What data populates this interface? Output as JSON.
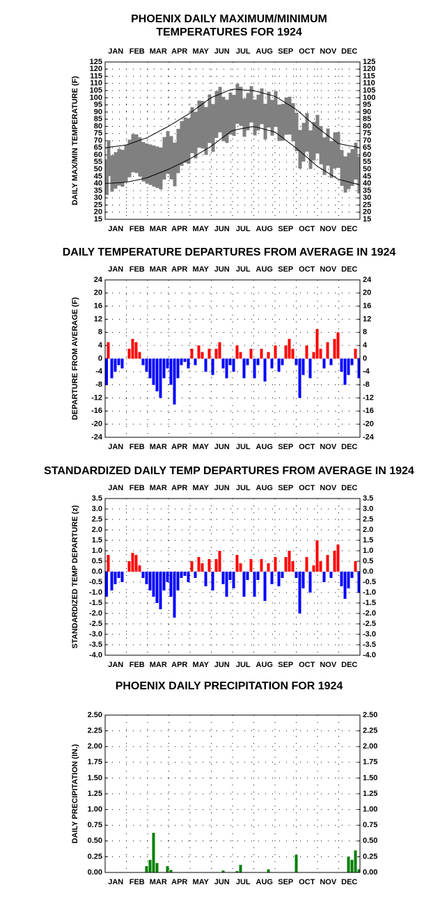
{
  "chart_data": [
    {
      "type": "range",
      "title": [
        "PHOENIX DAILY MAXIMUM/MINIMUM",
        "TEMPERATURES FOR 1924"
      ],
      "ylabel": "DAILY MAX/MIN TEMPERATURE (F)",
      "categories": [
        "JAN",
        "FEB",
        "MAR",
        "APR",
        "MAY",
        "JUN",
        "JUL",
        "AUG",
        "SEP",
        "OCT",
        "NOV",
        "DEC"
      ],
      "month_labels_top": true,
      "grid": true,
      "xlim": [
        1,
        367
      ],
      "ylim": [
        15,
        125
      ],
      "yticks": [
        15,
        20,
        25,
        30,
        35,
        40,
        45,
        50,
        55,
        60,
        65,
        70,
        75,
        80,
        85,
        90,
        95,
        100,
        105,
        110,
        115,
        120,
        125
      ],
      "x": [
        1,
        6,
        11,
        16,
        21,
        26,
        31,
        36,
        41,
        46,
        51,
        56,
        61,
        66,
        71,
        76,
        81,
        86,
        91,
        96,
        101,
        106,
        111,
        116,
        121,
        126,
        131,
        136,
        141,
        146,
        151,
        156,
        161,
        166,
        171,
        176,
        181,
        186,
        191,
        196,
        201,
        206,
        211,
        216,
        221,
        226,
        231,
        236,
        241,
        246,
        251,
        256,
        261,
        266,
        271,
        276,
        281,
        286,
        291,
        296,
        301,
        306,
        311,
        316,
        321,
        326,
        331,
        336,
        341,
        346,
        351,
        356,
        361,
        366
      ],
      "series": [
        {
          "color": "#808080",
          "values": [
            57,
            70.3,
            59.7,
            62,
            64.3,
            63.6,
            67,
            70.7,
            74.6,
            74.4,
            72.3,
            69.1,
            68,
            67.3,
            66.6,
            65.9,
            65.2,
            72.5,
            76.7,
            73.2,
            68.7,
            78.2,
            83.7,
            86.2,
            85.7,
            93.4,
            90.2,
            98,
            97.7,
            93.5,
            102.3,
            95.6,
            104.6,
            107.6,
            100.6,
            98.6,
            103.6,
            102,
            109.8,
            107.6,
            99.4,
            103.3,
            108.1,
            98.7,
            102.1,
            106.5,
            95.8,
            104.2,
            98.5,
            104.7,
            95.2,
            95.7,
            100.2,
            100.7,
            96.2,
            89.6,
            77.5,
            82.4,
            89.3,
            77.2,
            83.1,
            88,
            80.2,
            72.3,
            78.5,
            69.7,
            75.8,
            76,
            63.5,
            59,
            61.5,
            64.1,
            68.6,
            59.1
          ]
        },
        {
          "color": "#808080",
          "values": [
            32,
            45.2,
            34.3,
            36.5,
            38.6,
            37.8,
            41,
            44.4,
            47.9,
            47.4,
            44.9,
            41.5,
            40,
            39,
            37.9,
            36.9,
            35.9,
            42.8,
            46.8,
            42.9,
            38.1,
            47.3,
            52.4,
            54.6,
            53.8,
            61.2,
            57.6,
            65.1,
            64.5,
            60,
            68.4,
            62.1,
            71.9,
            75.8,
            69.6,
            68.4,
            74.3,
            73.3,
            81.8,
            80.3,
            72.7,
            77.2,
            82.7,
            73.7,
            77.1,
            81.5,
            70.8,
            79.2,
            73.5,
            79.6,
            69.8,
            70,
            74.1,
            74.3,
            69.5,
            62.6,
            50.5,
            55.4,
            62.3,
            50.2,
            56.1,
            61,
            53.5,
            46,
            52.5,
            44,
            50.5,
            51,
            38.4,
            33.7,
            36.1,
            38.4,
            42.8,
            33.1
          ]
        },
        {
          "color": "#000000",
          "values": [
            65,
            65.3,
            65.7,
            66,
            66.3,
            66.6,
            67,
            67.7,
            68.6,
            69.4,
            70.3,
            71.1,
            72,
            73.3,
            74.6,
            75.9,
            77.2,
            78.5,
            79.7,
            81.2,
            82.7,
            84.2,
            85.7,
            87.2,
            88.7,
            90.4,
            92.2,
            94,
            95.7,
            97.5,
            99.3,
            100.6,
            101.6,
            102.6,
            103.6,
            104.6,
            105.6,
            106,
            105.8,
            105.6,
            105.4,
            105.3,
            105.1,
            104.7,
            104.1,
            103.5,
            102.8,
            102.2,
            101.5,
            100.7,
            99.2,
            97.7,
            96.2,
            94.7,
            93.2,
            91.6,
            89.5,
            87.4,
            85.3,
            83.2,
            81.1,
            79,
            77.2,
            75.3,
            73.5,
            71.7,
            69.8,
            68,
            67.5,
            67,
            66.5,
            66.1,
            65.6,
            65.1
          ]
        },
        {
          "color": "#000000",
          "values": [
            40,
            40.2,
            40.3,
            40.5,
            40.6,
            40.8,
            41,
            41.4,
            41.9,
            42.4,
            42.9,
            43.5,
            44,
            45,
            45.9,
            46.9,
            47.9,
            48.8,
            49.8,
            50.9,
            52.1,
            53.3,
            54.4,
            55.6,
            56.8,
            58.2,
            59.6,
            61.1,
            62.5,
            64,
            65.4,
            67.1,
            68.9,
            70.8,
            72.6,
            74.4,
            76.3,
            77.3,
            77.8,
            78.3,
            78.7,
            79.2,
            79.7,
            79.7,
            79.1,
            78.5,
            77.8,
            77.2,
            76.5,
            75.6,
            73.8,
            72,
            70.1,
            68.3,
            66.5,
            64.6,
            62.5,
            60.4,
            58.3,
            56.2,
            54.1,
            52,
            50.5,
            49,
            47.5,
            46,
            44.5,
            43,
            42.4,
            41.7,
            41.1,
            40.4,
            39.8,
            39.1
          ]
        }
      ]
    },
    {
      "type": "bar",
      "title": [
        "DAILY TEMPERATURE DEPARTURES FROM AVERAGE IN 1924"
      ],
      "ylabel": "DEPARTURE FROM AVERAGE (F)",
      "categories": [
        "JAN",
        "FEB",
        "MAR",
        "APR",
        "MAY",
        "JUN",
        "JUL",
        "AUG",
        "SEP",
        "OCT",
        "NOV",
        "DEC"
      ],
      "month_labels_top": true,
      "grid": true,
      "xlim": [
        1,
        367
      ],
      "ylim": [
        -24,
        24
      ],
      "yticks": [
        -24,
        -20,
        -16,
        -12,
        -8,
        -4,
        0,
        4,
        8,
        12,
        16,
        20,
        24
      ],
      "x": [
        1,
        6,
        11,
        16,
        21,
        26,
        31,
        36,
        41,
        46,
        51,
        56,
        61,
        66,
        71,
        76,
        81,
        86,
        91,
        96,
        101,
        106,
        111,
        116,
        121,
        126,
        131,
        136,
        141,
        146,
        151,
        156,
        161,
        166,
        171,
        176,
        181,
        186,
        191,
        196,
        201,
        206,
        211,
        216,
        221,
        226,
        231,
        236,
        241,
        246,
        251,
        256,
        261,
        266,
        271,
        276,
        281,
        286,
        291,
        296,
        301,
        306,
        311,
        316,
        321,
        326,
        331,
        336,
        341,
        346,
        351,
        356,
        361,
        366
      ],
      "series": [
        {
          "color": "#ff0000",
          "negative_color": "#0000ff",
          "values": [
            -8,
            5,
            -6,
            -4,
            -2,
            -3,
            0,
            3,
            6,
            5,
            2,
            -2,
            -4,
            -6,
            -8,
            -10,
            -12,
            -6,
            -3,
            -8,
            -14,
            -6,
            -2,
            -1,
            -3,
            3,
            -2,
            4,
            2,
            -4,
            3,
            -5,
            3,
            5,
            -3,
            -6,
            -2,
            -4,
            4,
            2,
            -6,
            -2,
            3,
            -6,
            -2,
            3,
            -7,
            2,
            -3,
            4,
            -4,
            -2,
            4,
            6,
            3,
            -2,
            -12,
            -5,
            4,
            -6,
            2,
            9,
            3,
            -3,
            5,
            -2,
            6,
            8,
            -4,
            -8,
            -5,
            -2,
            3,
            -6
          ]
        }
      ]
    },
    {
      "type": "bar",
      "title": [
        "STANDARDIZED DAILY TEMP DEPARTURES FROM AVERAGE IN 1924"
      ],
      "ylabel": "STANDARDIZED TEMP DEPARTURE (z)",
      "categories": [
        "JAN",
        "FEB",
        "MAR",
        "APR",
        "MAY",
        "JUN",
        "JUL",
        "AUG",
        "SEP",
        "OCT",
        "NOV",
        "DEC"
      ],
      "month_labels_top": true,
      "grid": true,
      "xlim": [
        1,
        367
      ],
      "ylim": [
        -4,
        3.5
      ],
      "yticks": [
        {
          "value": -4,
          "label": "-4.0"
        },
        -3.5,
        {
          "value": -3,
          "label": "-3.0"
        },
        -2.5,
        {
          "value": -2,
          "label": "-2.0"
        },
        -1.5,
        {
          "value": -1,
          "label": "-1.0"
        },
        -0.5,
        {
          "value": 0,
          "label": "0.0"
        },
        0.5,
        {
          "value": 1,
          "label": "1.0"
        },
        1.5,
        {
          "value": 2,
          "label": "2.0"
        },
        2.5,
        {
          "value": 3,
          "label": "3.0"
        },
        3.5
      ],
      "x": [
        1,
        6,
        11,
        16,
        21,
        26,
        31,
        36,
        41,
        46,
        51,
        56,
        61,
        66,
        71,
        76,
        81,
        86,
        91,
        96,
        101,
        106,
        111,
        116,
        121,
        126,
        131,
        136,
        141,
        146,
        151,
        156,
        161,
        166,
        171,
        176,
        181,
        186,
        191,
        196,
        201,
        206,
        211,
        216,
        221,
        226,
        231,
        236,
        241,
        246,
        251,
        256,
        261,
        266,
        271,
        276,
        281,
        286,
        291,
        296,
        301,
        306,
        311,
        316,
        321,
        326,
        331,
        336,
        341,
        346,
        351,
        356,
        361,
        366
      ],
      "series": [
        {
          "color": "#ff0000",
          "negative_color": "#0000ff",
          "values": [
            -1.2,
            0.8,
            -0.9,
            -0.6,
            -0.3,
            -0.5,
            0,
            0.5,
            0.9,
            0.8,
            0.3,
            -0.3,
            -0.6,
            -0.9,
            -1.2,
            -1.5,
            -1.8,
            -0.9,
            -0.5,
            -1.2,
            -2.2,
            -0.9,
            -0.3,
            -0.2,
            -0.5,
            0.5,
            -0.3,
            0.7,
            0.4,
            -0.7,
            0.6,
            -0.9,
            0.6,
            1,
            -0.6,
            -1.2,
            -0.4,
            -0.8,
            0.8,
            0.4,
            -1.2,
            -0.4,
            0.6,
            -1.2,
            -0.4,
            0.6,
            -1.4,
            0.4,
            -0.6,
            0.7,
            -0.7,
            -0.3,
            0.7,
            1,
            0.5,
            -0.3,
            -2,
            -0.8,
            0.7,
            -1,
            0.3,
            1.5,
            0.5,
            -0.5,
            0.8,
            -0.3,
            1,
            1.3,
            -0.7,
            -1.3,
            -0.8,
            -0.3,
            0.5,
            -1
          ]
        }
      ]
    },
    {
      "type": "bar",
      "title": [
        "PHOENIX DAILY PRECIPITATION FOR 1924"
      ],
      "ylabel": "DAILY PRECIPITATION (IN.)",
      "categories": [
        "JAN",
        "FEB",
        "MAR",
        "APR",
        "MAY",
        "JUN",
        "JUL",
        "AUG",
        "SEP",
        "OCT",
        "NOV",
        "DEC"
      ],
      "month_labels_top": false,
      "grid": true,
      "xlim": [
        1,
        367
      ],
      "ylim": [
        0,
        2.5
      ],
      "yticks": [
        {
          "value": 0,
          "label": "0.00"
        },
        0.25,
        {
          "value": 0.5,
          "label": "0.50"
        },
        0.75,
        {
          "value": 1,
          "label": "1.00"
        },
        1.25,
        {
          "value": 1.5,
          "label": "1.50"
        },
        1.75,
        {
          "value": 2,
          "label": "2.00"
        },
        2.25,
        {
          "value": 2.5,
          "label": "2.50"
        }
      ],
      "x": [
        1,
        6,
        11,
        16,
        21,
        26,
        31,
        36,
        41,
        46,
        51,
        56,
        61,
        66,
        71,
        76,
        81,
        86,
        91,
        96,
        101,
        106,
        111,
        116,
        121,
        126,
        131,
        136,
        141,
        146,
        151,
        156,
        161,
        166,
        171,
        176,
        181,
        186,
        191,
        196,
        201,
        206,
        211,
        216,
        221,
        226,
        231,
        236,
        241,
        246,
        251,
        256,
        261,
        266,
        271,
        276,
        281,
        286,
        291,
        296,
        301,
        306,
        311,
        316,
        321,
        326,
        331,
        336,
        341,
        346,
        351,
        356,
        361,
        366
      ],
      "series": [
        {
          "color": "#008000",
          "values": [
            0,
            0,
            0,
            0,
            0,
            0,
            0,
            0,
            0,
            0,
            0,
            0,
            0.1,
            0.2,
            0.63,
            0.15,
            0,
            0,
            0.1,
            0.04,
            0,
            0,
            0,
            0,
            0,
            0,
            0,
            0,
            0,
            0,
            0,
            0,
            0,
            0,
            0.03,
            0,
            0,
            0,
            0.02,
            0.12,
            0,
            0,
            0,
            0,
            0,
            0,
            0,
            0.05,
            0,
            0,
            0,
            0,
            0,
            0,
            0,
            0.28,
            0,
            0,
            0,
            0,
            0,
            0,
            0,
            0,
            0,
            0,
            0,
            0,
            0,
            0,
            0.25,
            0.2,
            0.35,
            0.05
          ]
        }
      ]
    }
  ]
}
